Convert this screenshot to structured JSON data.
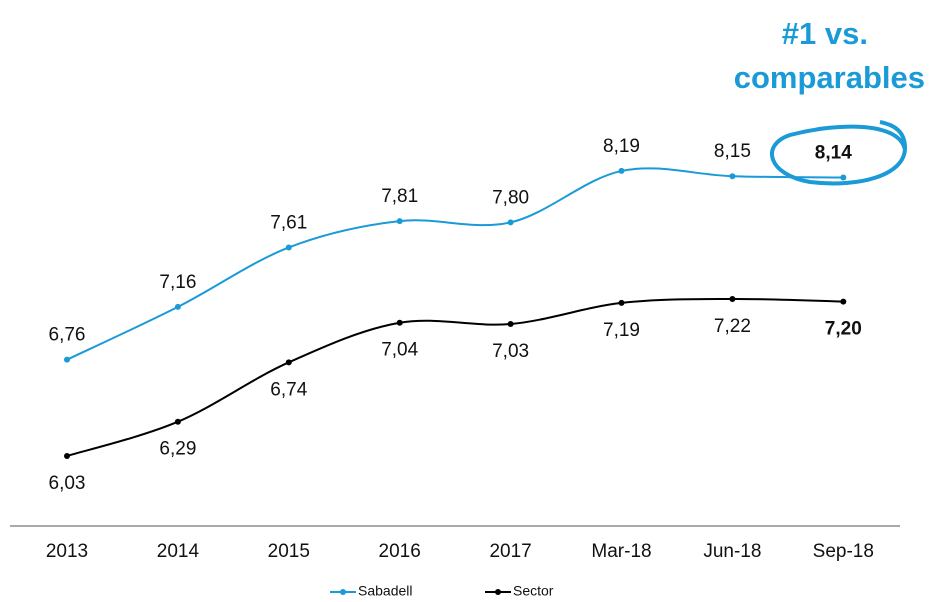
{
  "chart_data": {
    "type": "line",
    "annotation": [
      "#1 vs.",
      "comparables"
    ],
    "categories": [
      "2013",
      "2014",
      "2015",
      "2016",
      "2017",
      "Mar-18",
      "Jun-18",
      "Sep-18"
    ],
    "series": [
      {
        "name": "Sabadell",
        "color": "#1a9ad6",
        "values": [
          6.76,
          7.16,
          7.61,
          7.81,
          7.8,
          8.19,
          8.15,
          8.14
        ],
        "value_labels": [
          "6,76",
          "7,16",
          "7,61",
          "7,81",
          "7,80",
          "8,19",
          "8,15",
          "8,14"
        ]
      },
      {
        "name": "Sector",
        "color": "#000000",
        "values": [
          6.03,
          6.29,
          6.74,
          7.04,
          7.03,
          7.19,
          7.22,
          7.2
        ],
        "value_labels": [
          "6,03",
          "6,29",
          "6,74",
          "7,04",
          "7,03",
          "7,19",
          "7,22",
          "7,20"
        ]
      }
    ],
    "ylim": [
      5.5,
      9.5
    ],
    "legend": "bottom"
  }
}
